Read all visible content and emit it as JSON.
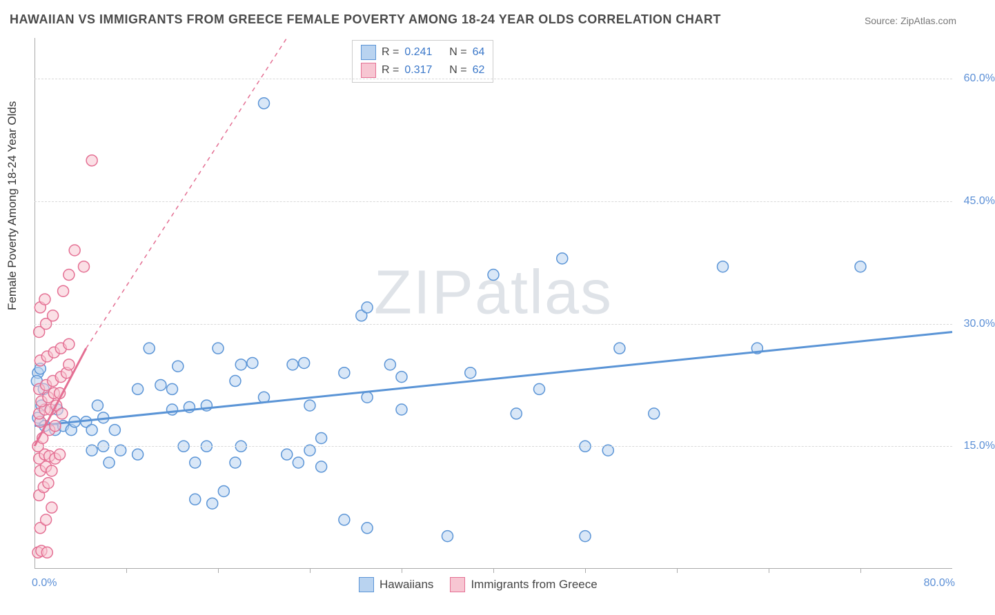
{
  "title": "HAWAIIAN VS IMMIGRANTS FROM GREECE FEMALE POVERTY AMONG 18-24 YEAR OLDS CORRELATION CHART",
  "source_label": "Source:",
  "source_name": "ZipAtlas.com",
  "y_axis_label": "Female Poverty Among 18-24 Year Olds",
  "watermark": "ZIPatlas",
  "chart": {
    "type": "scatter",
    "xlim": [
      0,
      80
    ],
    "ylim": [
      0,
      65
    ],
    "x_min_label": "0.0%",
    "x_max_label": "80.0%",
    "y_grid": [
      {
        "v": 15,
        "label": "15.0%"
      },
      {
        "v": 30,
        "label": "30.0%"
      },
      {
        "v": 45,
        "label": "45.0%"
      },
      {
        "v": 60,
        "label": "60.0%"
      }
    ],
    "x_ticks": [
      8,
      16,
      24,
      32,
      40,
      48,
      56,
      64,
      72
    ],
    "background_color": "#ffffff",
    "grid_color": "#d8d8d8",
    "axis_color": "#aaaaaa",
    "tick_label_color": "#5b8fd6",
    "marker_radius": 8,
    "marker_stroke_width": 1.5,
    "series": [
      {
        "name": "Hawaiians",
        "fill": "#b9d3f0",
        "stroke": "#5a94d6",
        "fill_opacity": 0.55,
        "R": "0.241",
        "N": "64",
        "trend": {
          "x1": 0,
          "y1": 17.5,
          "x2": 80,
          "y2": 29,
          "dash": false,
          "width": 3
        },
        "trend_ext": null,
        "points": [
          [
            0.3,
            24
          ],
          [
            0.5,
            24.5
          ],
          [
            0.2,
            23
          ],
          [
            0.8,
            22
          ],
          [
            0.6,
            20
          ],
          [
            0.3,
            18.5
          ],
          [
            0.9,
            17.5
          ],
          [
            1.8,
            17
          ],
          [
            2.5,
            17.5
          ],
          [
            3.2,
            17
          ],
          [
            3.5,
            18
          ],
          [
            4.5,
            18
          ],
          [
            2,
            19.5
          ],
          [
            5,
            17
          ],
          [
            6,
            18.5
          ],
          [
            5.5,
            20
          ],
          [
            7,
            17
          ],
          [
            5,
            14.5
          ],
          [
            6,
            15
          ],
          [
            7.5,
            14.5
          ],
          [
            9,
            14
          ],
          [
            6.5,
            13
          ],
          [
            9,
            22
          ],
          [
            10,
            27
          ],
          [
            11,
            22.5
          ],
          [
            12,
            22
          ],
          [
            12.5,
            24.8
          ],
          [
            12,
            19.5
          ],
          [
            13.5,
            19.8
          ],
          [
            13,
            15
          ],
          [
            14,
            13
          ],
          [
            15,
            15
          ],
          [
            15,
            20
          ],
          [
            16,
            27
          ],
          [
            17.5,
            23
          ],
          [
            18,
            25
          ],
          [
            19,
            25.2
          ],
          [
            14,
            8.5
          ],
          [
            15.5,
            8
          ],
          [
            16.5,
            9.5
          ],
          [
            17.5,
            13
          ],
          [
            18,
            15
          ],
          [
            20,
            21
          ],
          [
            22,
            14
          ],
          [
            23,
            13
          ],
          [
            24,
            14.5
          ],
          [
            25,
            12.5
          ],
          [
            22.5,
            25
          ],
          [
            23.5,
            25.2
          ],
          [
            24,
            20
          ],
          [
            25,
            16
          ],
          [
            27,
            24
          ],
          [
            20,
            57
          ],
          [
            28.5,
            31
          ],
          [
            29,
            32
          ],
          [
            29,
            21
          ],
          [
            31,
            25
          ],
          [
            27,
            6
          ],
          [
            32,
            23.5
          ],
          [
            32,
            19.5
          ],
          [
            29,
            5
          ],
          [
            36,
            4
          ],
          [
            38,
            24
          ],
          [
            40,
            36
          ],
          [
            42,
            19
          ],
          [
            44,
            22
          ],
          [
            46,
            38
          ],
          [
            48,
            15
          ],
          [
            48,
            4
          ],
          [
            50,
            14.5
          ],
          [
            51,
            27
          ],
          [
            54,
            19
          ],
          [
            60,
            37
          ],
          [
            63,
            27
          ],
          [
            72,
            37
          ]
        ]
      },
      {
        "name": "Immigrants from Greece",
        "fill": "#f7c6d2",
        "stroke": "#e46f93",
        "fill_opacity": 0.55,
        "R": "0.317",
        "N": "62",
        "trend": {
          "x1": 0,
          "y1": 15,
          "x2": 4.5,
          "y2": 27,
          "dash": false,
          "width": 3
        },
        "trend_ext": {
          "x1": 4.5,
          "y1": 27,
          "x2": 22,
          "y2": 65,
          "dash": true,
          "width": 1.5
        },
        "points": [
          [
            0.3,
            2
          ],
          [
            0.6,
            2.2
          ],
          [
            1.1,
            2
          ],
          [
            0.5,
            5
          ],
          [
            1.0,
            6
          ],
          [
            1.5,
            7.5
          ],
          [
            0.4,
            9
          ],
          [
            0.8,
            10
          ],
          [
            1.2,
            10.5
          ],
          [
            0.5,
            12
          ],
          [
            1.0,
            12.5
          ],
          [
            1.5,
            12
          ],
          [
            0.4,
            13.5
          ],
          [
            0.9,
            14
          ],
          [
            1.3,
            13.8
          ],
          [
            1.8,
            13.5
          ],
          [
            2.2,
            14
          ],
          [
            0.3,
            15
          ],
          [
            0.7,
            16
          ],
          [
            1.3,
            17
          ],
          [
            1.8,
            17.5
          ],
          [
            0.5,
            18
          ],
          [
            0.4,
            19
          ],
          [
            0.9,
            19.5
          ],
          [
            1.4,
            19.5
          ],
          [
            1.9,
            20
          ],
          [
            2.4,
            19
          ],
          [
            0.6,
            20.5
          ],
          [
            1.2,
            21
          ],
          [
            1.7,
            21.5
          ],
          [
            2.2,
            21.5
          ],
          [
            0.4,
            22
          ],
          [
            1.0,
            22.5
          ],
          [
            1.6,
            23
          ],
          [
            2.3,
            23.5
          ],
          [
            2.8,
            24
          ],
          [
            3.0,
            25
          ],
          [
            0.5,
            25.5
          ],
          [
            1.1,
            26
          ],
          [
            1.7,
            26.5
          ],
          [
            2.3,
            27
          ],
          [
            3.0,
            27.5
          ],
          [
            0.4,
            29
          ],
          [
            1.0,
            30
          ],
          [
            1.6,
            31
          ],
          [
            0.5,
            32
          ],
          [
            0.9,
            33
          ],
          [
            2.5,
            34
          ],
          [
            3.0,
            36
          ],
          [
            4.3,
            37
          ],
          [
            3.5,
            39
          ],
          [
            5,
            50
          ]
        ]
      }
    ]
  },
  "legend_top_prefix_R": "R =",
  "legend_top_prefix_N": "N =",
  "legend_bottom": [
    "Hawaiians",
    "Immigrants from Greece"
  ]
}
